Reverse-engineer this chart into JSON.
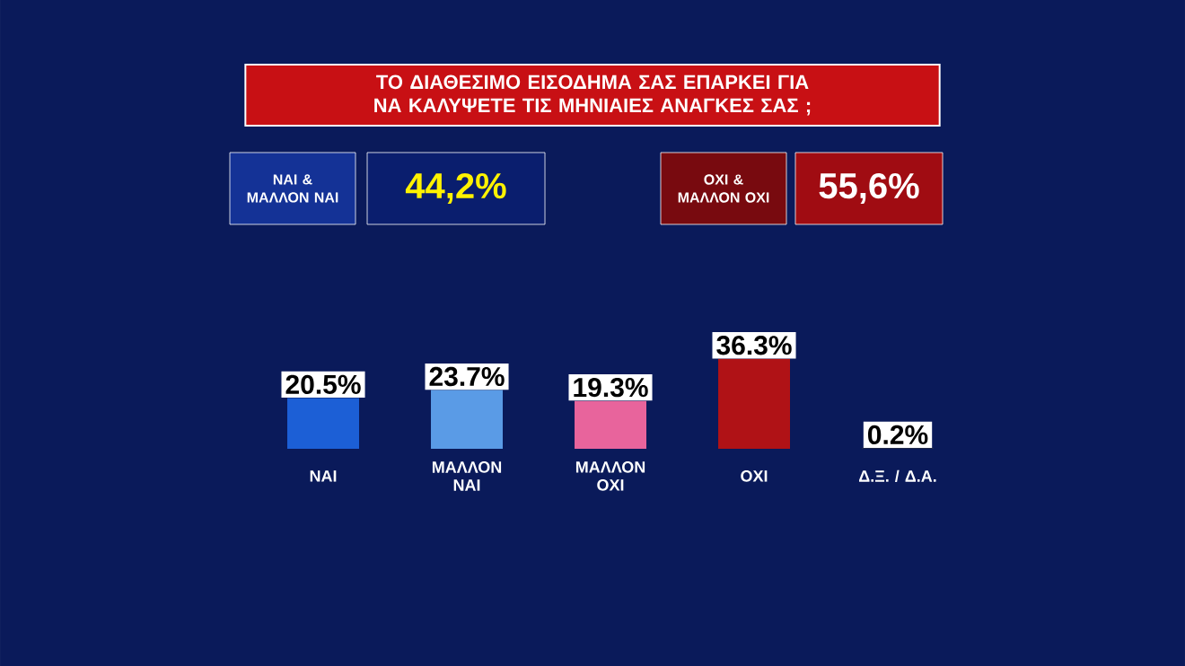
{
  "chart_data": {
    "type": "bar",
    "title": "ΤΟ ΔΙΑΘΕΣΙΜΟ ΕΙΣΟΔΗΜΑ ΣΑΣ ΕΠΑΡΚΕΙ ΓΙΑ ΝΑ ΚΑΛΥΨΕΤΕ ΤΙΣ ΜΗΝΙΑΙΕΣ ΑΝΑΓΚΕΣ ΣΑΣ ;",
    "annotations": [
      "ΝΑΙ & ΜΑΛΛΟΝ ΝΑΙ",
      "44,2%",
      "ΟΧΙ & ΜΑΛΛΟΝ ΟΧΙ",
      "55,6%"
    ],
    "categories": [
      "ΝΑΙ",
      "ΜΑΛΛΟΝ ΝΑΙ",
      "ΜΑΛΛΟΝ ΟΧΙ",
      "ΟΧΙ",
      "Δ.Ξ. / Δ.Α."
    ],
    "values": [
      20.5,
      23.7,
      19.3,
      36.3,
      0.2
    ],
    "value_labels": [
      "20.5%",
      "23.7%",
      "19.3%",
      "36.3%",
      "0.2%"
    ],
    "colors": [
      "#1c5fd6",
      "#5a9be6",
      "#e8649c",
      "#b01216",
      "#3a3a3a"
    ]
  }
}
